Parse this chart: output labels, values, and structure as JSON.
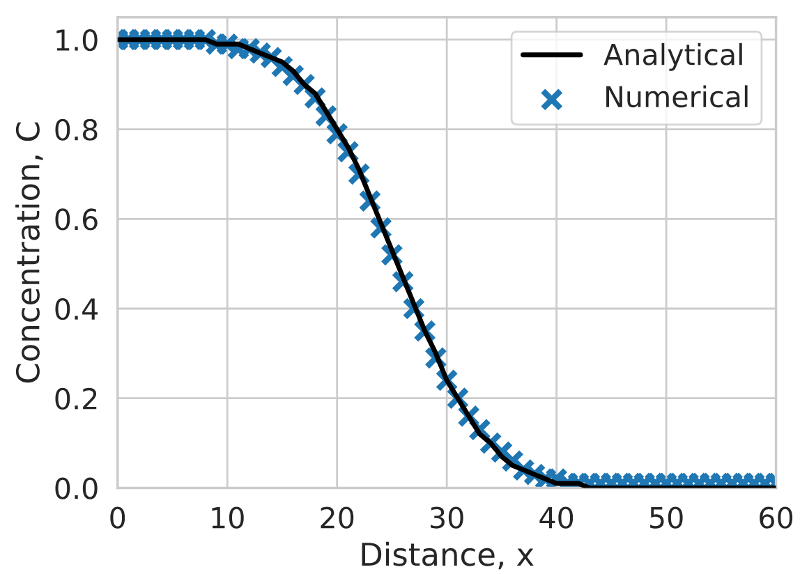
{
  "chart_data": {
    "type": "line",
    "xlabel": "Distance, x",
    "ylabel": "Concentration, C",
    "x": [
      0,
      1,
      2,
      3,
      4,
      5,
      6,
      7,
      8,
      9,
      10,
      11,
      12,
      13,
      14,
      15,
      16,
      17,
      18,
      19,
      20,
      21,
      22,
      23,
      24,
      25,
      26,
      27,
      28,
      29,
      30,
      31,
      32,
      33,
      34,
      35,
      36,
      37,
      38,
      39,
      40,
      41,
      42,
      43,
      44,
      45,
      46,
      47,
      48,
      49,
      50,
      51,
      52,
      53,
      54,
      55,
      56,
      57,
      58,
      59,
      60
    ],
    "series": [
      {
        "name": "Analytical",
        "color": "#000000",
        "line_style": "solid",
        "marker": "none",
        "values": [
          1.0,
          1.0,
          1.0,
          1.0,
          1.0,
          1.0,
          1.0,
          1.0,
          1.0,
          0.99,
          0.99,
          0.99,
          0.98,
          0.97,
          0.96,
          0.95,
          0.93,
          0.9,
          0.88,
          0.84,
          0.8,
          0.76,
          0.71,
          0.65,
          0.59,
          0.53,
          0.47,
          0.41,
          0.35,
          0.3,
          0.24,
          0.2,
          0.16,
          0.12,
          0.1,
          0.07,
          0.05,
          0.04,
          0.03,
          0.02,
          0.01,
          0.01,
          0.01,
          0.0,
          0.0,
          0.0,
          0.0,
          0.0,
          0.0,
          0.0,
          0.0,
          0.0,
          0.0,
          0.0,
          0.0,
          0.0,
          0.0,
          0.0,
          0.0,
          0.0,
          0.0
        ]
      },
      {
        "name": "Numerical",
        "type": "scatter",
        "color": "#1f77b4",
        "marker": "cross",
        "values": [
          1.0,
          1.0,
          1.0,
          1.0,
          1.0,
          1.0,
          1.0,
          1.0,
          1.0,
          0.99,
          0.99,
          0.98,
          0.98,
          0.97,
          0.96,
          0.94,
          0.92,
          0.9,
          0.87,
          0.83,
          0.79,
          0.75,
          0.7,
          0.64,
          0.58,
          0.52,
          0.46,
          0.4,
          0.35,
          0.29,
          0.24,
          0.2,
          0.16,
          0.13,
          0.1,
          0.08,
          0.06,
          0.04,
          0.03,
          0.02,
          0.02,
          0.01,
          0.01,
          0.01,
          0.01,
          0.01,
          0.01,
          0.01,
          0.01,
          0.01,
          0.01,
          0.01,
          0.01,
          0.01,
          0.01,
          0.01,
          0.01,
          0.01,
          0.01,
          0.01,
          0.01
        ]
      }
    ],
    "xlim": [
      0,
      60
    ],
    "xticks": [
      0,
      10,
      20,
      30,
      40,
      50,
      60
    ],
    "ylim": [
      0,
      1.05
    ],
    "yticks": [
      {
        "value": 0,
        "label": "0.0"
      },
      0.2,
      0.4,
      0.6,
      0.8,
      {
        "value": 1,
        "label": "1.0"
      }
    ],
    "grid": true,
    "legend": "top right"
  }
}
